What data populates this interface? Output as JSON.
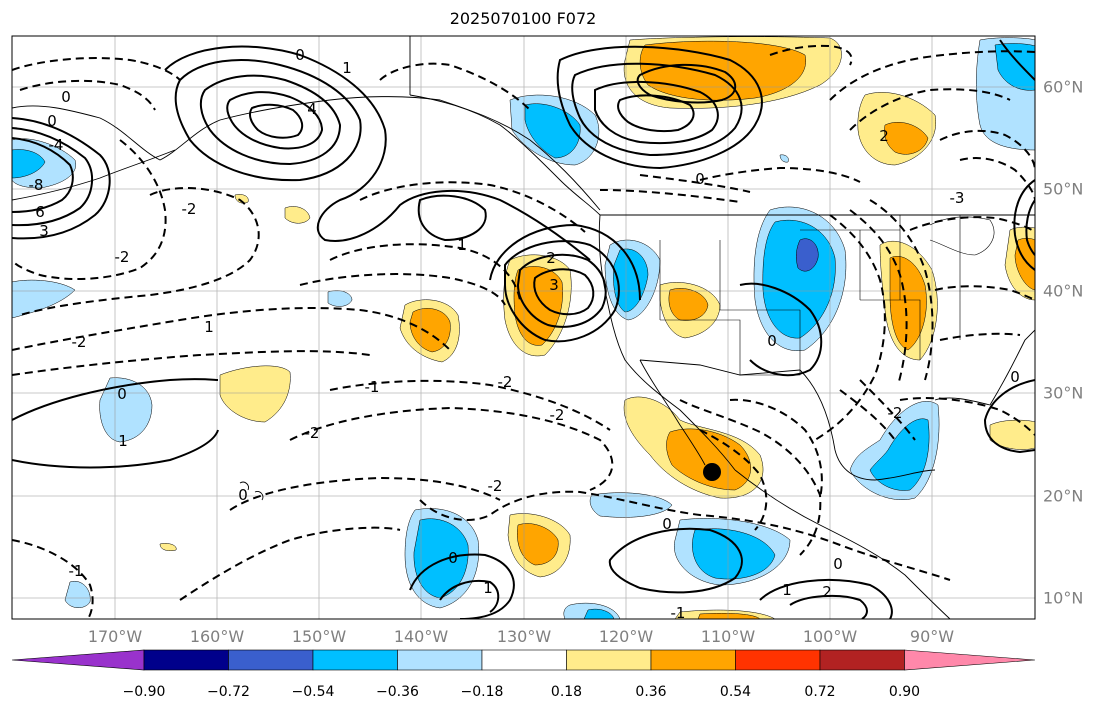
{
  "title": "2025070100 F072",
  "lon_labels": [
    "170°W",
    "160°W",
    "150°W",
    "140°W",
    "130°W",
    "120°W",
    "110°W",
    "100°W",
    "90°W"
  ],
  "lat_labels": [
    "60°N",
    "50°N",
    "40°N",
    "30°N",
    "20°N",
    "10°N"
  ],
  "colorbar": {
    "tick_labels": [
      "−0.90",
      "−0.72",
      "−0.54",
      "−0.36",
      "−0.18",
      "0.18",
      "0.36",
      "0.54",
      "0.72",
      "0.90"
    ],
    "colors": [
      "#9932cc",
      "#00008b",
      "#3a5fcd",
      "#00bfff",
      "#b0e2ff",
      "#ffffff",
      "#ffec8b",
      "#ffa500",
      "#ff3300",
      "#b22222",
      "#ff88aa"
    ]
  },
  "shading_colors": {
    "light_blue": "#b0e2ff",
    "blue": "#00bfff",
    "dark_blue": "#3a5fcd",
    "light_yellow": "#ffec8b",
    "orange": "#ffa500"
  },
  "contour_labels": [
    "0",
    "0",
    "0",
    "0",
    "0",
    "0",
    "0",
    "0",
    "0",
    "0",
    "0",
    "1",
    "1",
    "1",
    "1",
    "1",
    "1",
    "-1",
    "-1",
    "-1",
    "2",
    "2",
    "2",
    "-2",
    "-2",
    "-2",
    "-2",
    "-2",
    "-2",
    "-2",
    "-2",
    "3",
    "3",
    "-3",
    "4",
    "-4",
    "6",
    "-8"
  ]
}
